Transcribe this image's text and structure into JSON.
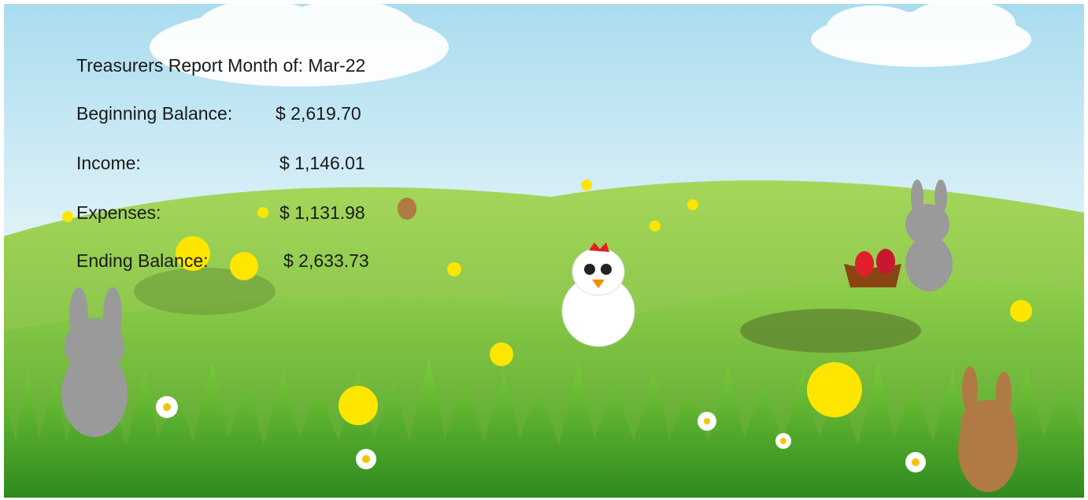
{
  "report": {
    "title": "Treasurers Report Month of: Mar-22",
    "rows": [
      {
        "label": "Beginning Balance:",
        "amount": "$ 2,619.70"
      },
      {
        "label": "Income:",
        "amount": "$ 1,146.01"
      },
      {
        "label": "Expenses:",
        "amount": "$ 1,131.98"
      },
      {
        "label": "Ending Balance:",
        "amount": "$ 2,633.73"
      }
    ]
  }
}
